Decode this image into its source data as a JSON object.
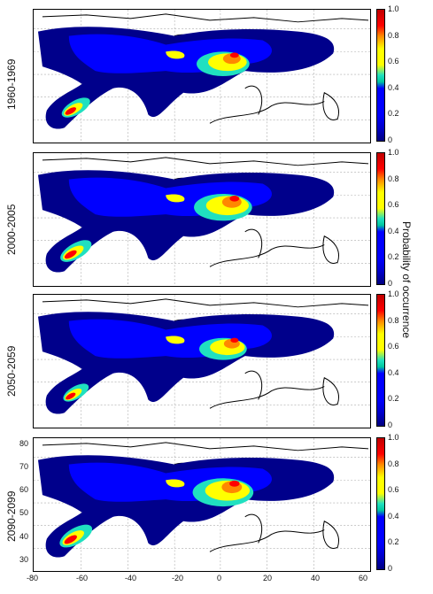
{
  "panels": [
    {
      "period": "1960-1969"
    },
    {
      "period": "2000-2005"
    },
    {
      "period": "2050-2059"
    },
    {
      "period": "2090-2099"
    }
  ],
  "colorbar": {
    "title": "Probability of occurrence",
    "ticks": [
      "1.0",
      "0.8",
      "0.6",
      "0.4",
      "0.2",
      "0"
    ]
  },
  "x_ticks": [
    "-80",
    "-60",
    "-40",
    "-20",
    "0",
    "20",
    "40",
    "60"
  ],
  "y_ticks": [
    "80",
    "70",
    "60",
    "50",
    "40",
    "30"
  ],
  "colors": {
    "deep_blue": "#00008b",
    "blue": "#0000ff",
    "cyan": "#20e0c0",
    "yellow": "#ffff00",
    "orange": "#ff8800",
    "red": "#ff0000"
  }
}
